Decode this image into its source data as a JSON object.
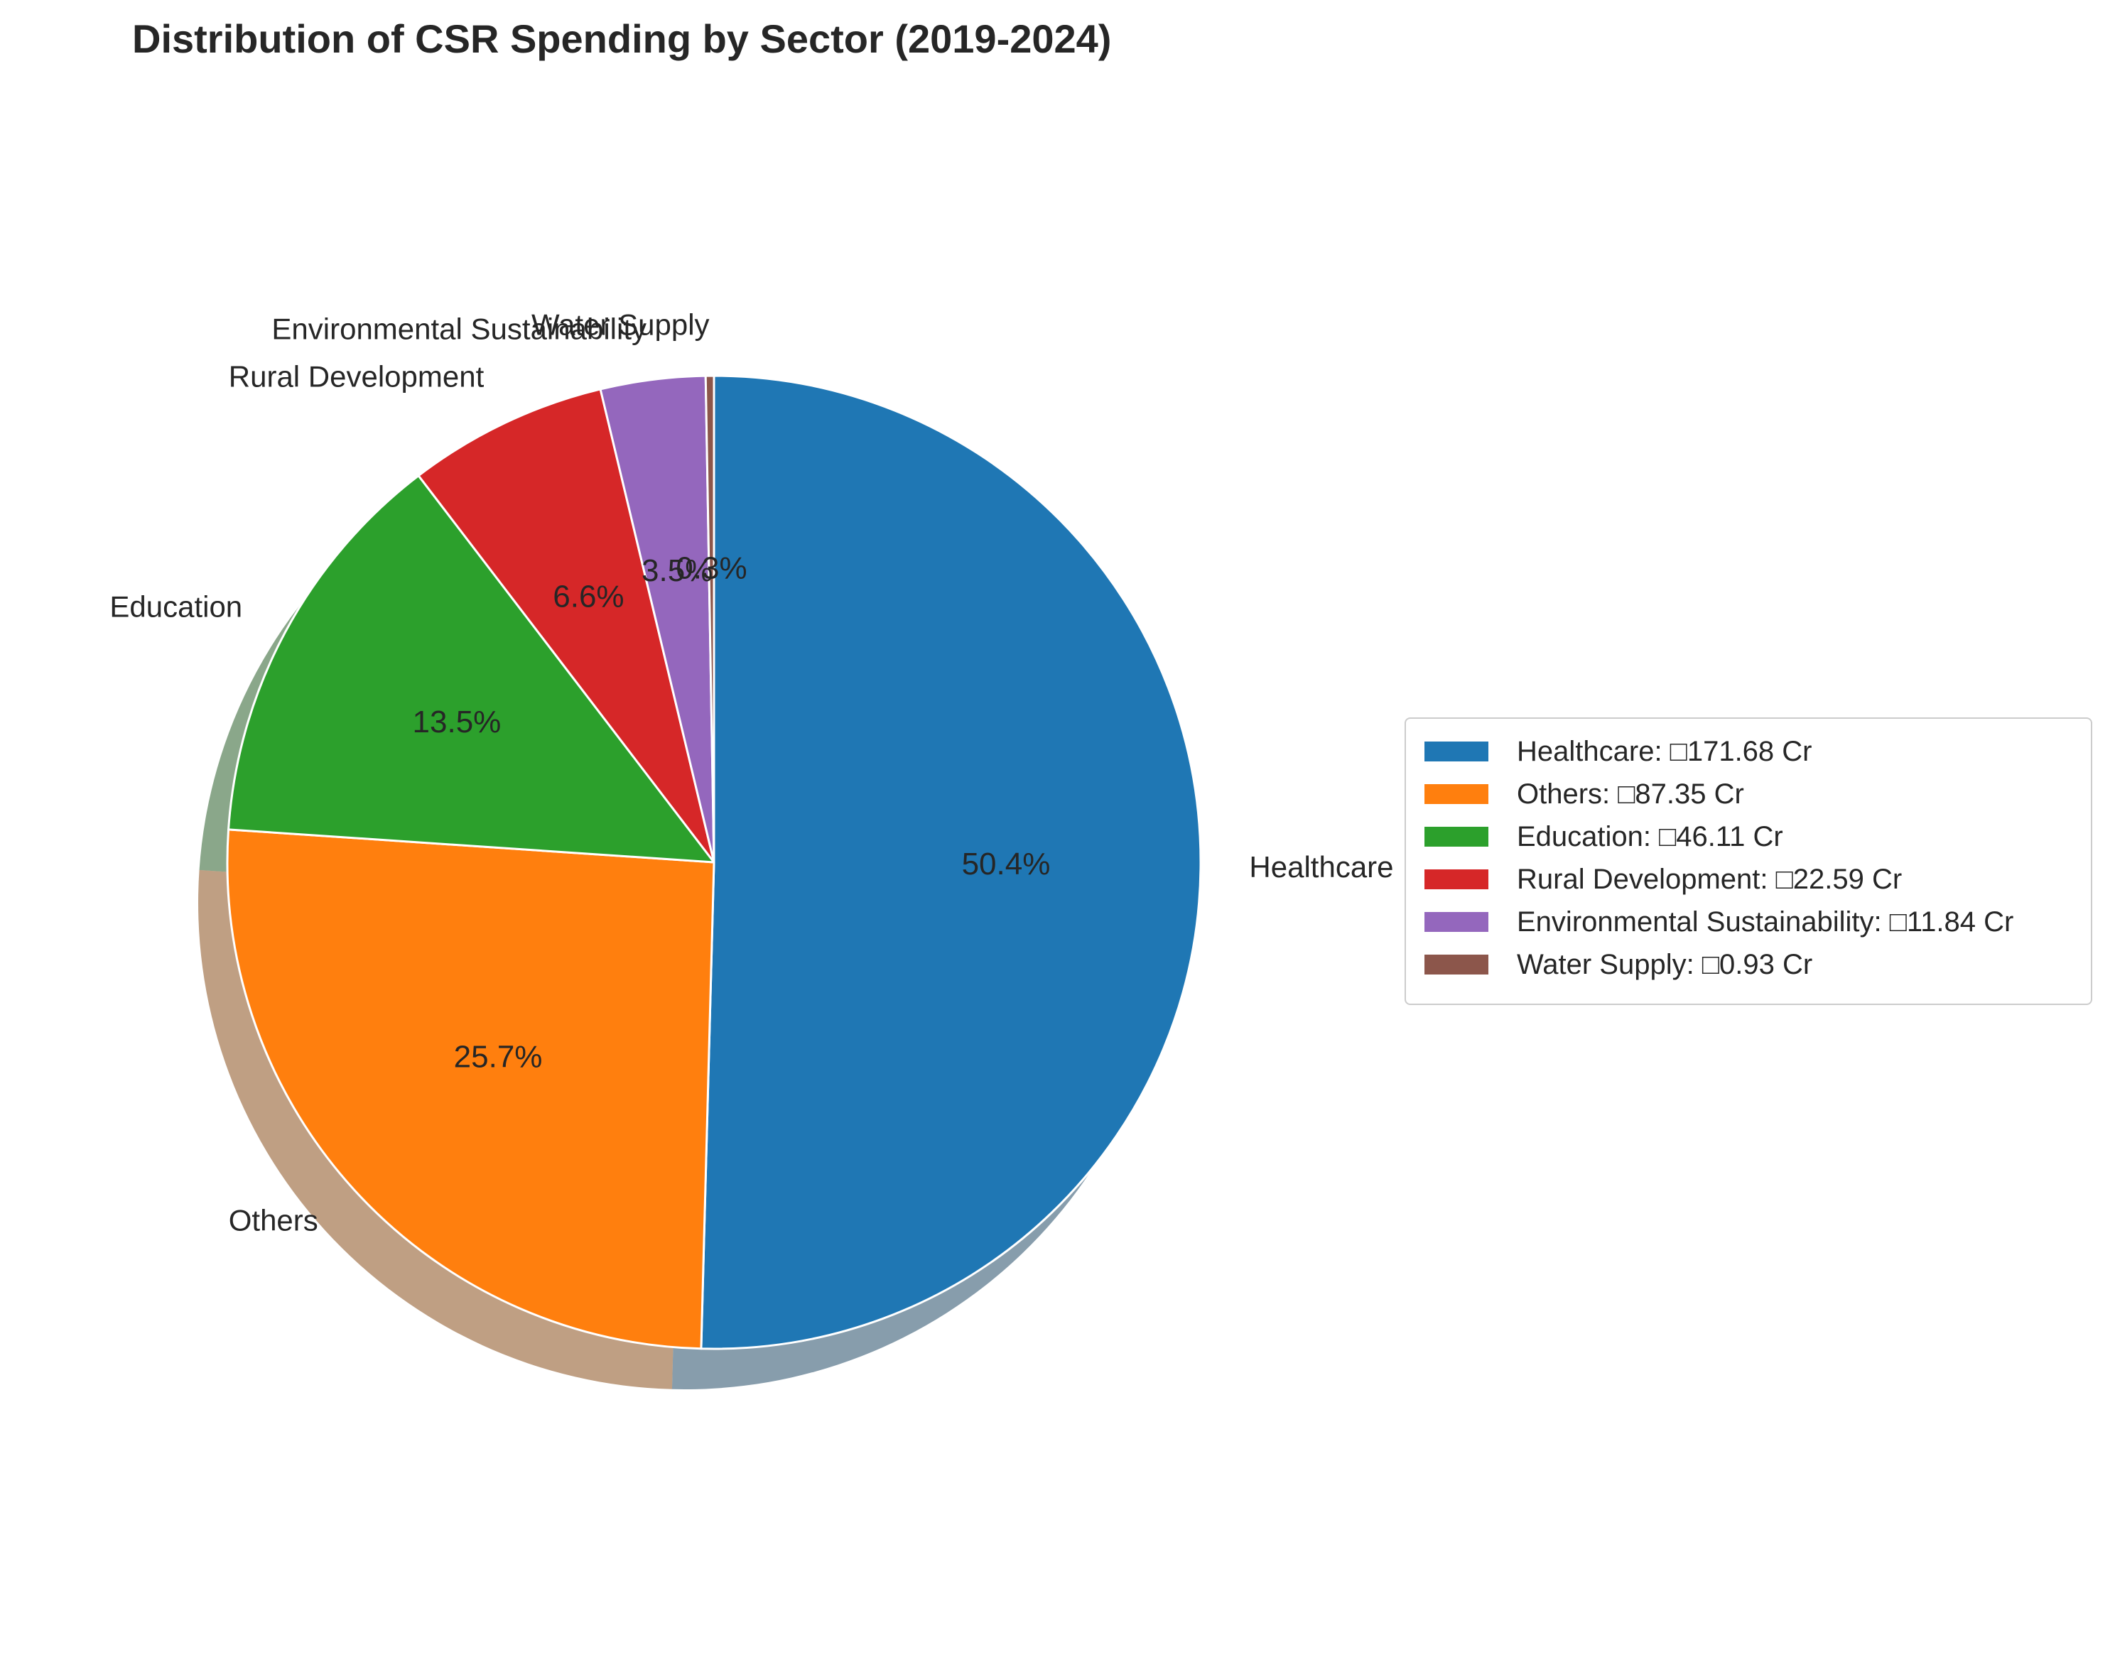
{
  "chart_data": {
    "type": "pie",
    "title": "Distribution of CSR Spending by Sector (2019-2024)",
    "start_angle": 90,
    "direction": "clockwise",
    "shadow": true,
    "legend_placement": "right",
    "slices": [
      {
        "label": "Healthcare",
        "value": 171.68,
        "percent_label": "50.4%",
        "color": "#1f77b4",
        "legend_text": "Healthcare: □171.68 Cr"
      },
      {
        "label": "Others",
        "value": 87.35,
        "percent_label": "25.7%",
        "color": "#ff7f0e",
        "legend_text": "Others: □87.35 Cr"
      },
      {
        "label": "Education",
        "value": 46.11,
        "percent_label": "13.5%",
        "color": "#2ca02c",
        "legend_text": "Education: □46.11 Cr"
      },
      {
        "label": "Rural Development",
        "value": 22.59,
        "percent_label": "6.6%",
        "color": "#d62728",
        "legend_text": "Rural Development: □22.59 Cr"
      },
      {
        "label": "Environmental Sustainability",
        "value": 11.84,
        "percent_label": "3.5%",
        "color": "#9467bd",
        "legend_text": "Environmental Sustainability: □11.84 Cr"
      },
      {
        "label": "Water Supply",
        "value": 0.93,
        "percent_label": "0.3%",
        "color": "#8c564b",
        "legend_text": "Water Supply: □0.93 Cr"
      }
    ]
  }
}
